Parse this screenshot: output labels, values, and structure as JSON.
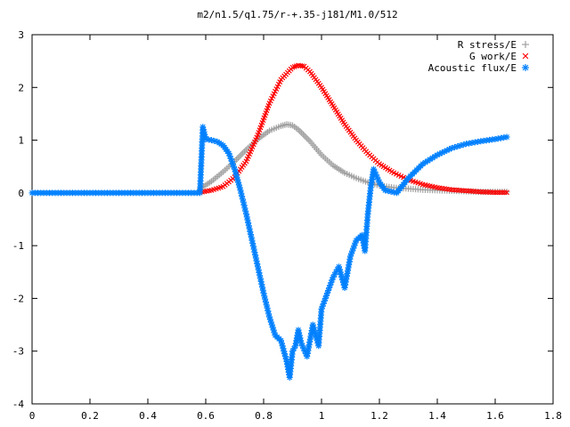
{
  "chart_data": {
    "type": "scatter",
    "title": "m2/n1.5/q1.75/r-+.35-j181/M1.0/512",
    "xlabel": "",
    "ylabel": "",
    "xlim": [
      0,
      1.8
    ],
    "ylim": [
      -4,
      3
    ],
    "x_ticks": [
      "0",
      "0.2",
      "0.4",
      "0.6",
      "0.8",
      "1",
      "1.2",
      "1.4",
      "1.6",
      "1.8"
    ],
    "y_ticks": [
      "3",
      "2",
      "1",
      "0",
      "-1",
      "-2",
      "-3",
      "-4"
    ],
    "grid": false,
    "legend_position": "top-right",
    "series": [
      {
        "name": "R stress/E",
        "marker": "plus",
        "color": "#a0a0a0",
        "x": [
          0.58,
          0.62,
          0.66,
          0.7,
          0.74,
          0.78,
          0.82,
          0.86,
          0.88,
          0.9,
          0.92,
          0.96,
          1.0,
          1.04,
          1.08,
          1.12,
          1.16,
          1.2,
          1.25,
          1.3,
          1.35,
          1.4,
          1.45,
          1.5,
          1.55,
          1.6,
          1.64
        ],
        "y": [
          0.08,
          0.22,
          0.4,
          0.6,
          0.82,
          1.02,
          1.18,
          1.27,
          1.3,
          1.28,
          1.2,
          0.98,
          0.72,
          0.52,
          0.38,
          0.28,
          0.2,
          0.14,
          0.1,
          0.08,
          0.06,
          0.05,
          0.04,
          0.03,
          0.02,
          0.02,
          0.02
        ]
      },
      {
        "name": "G work/E",
        "marker": "cross",
        "color": "#ff0000",
        "x": [
          0.58,
          0.62,
          0.66,
          0.7,
          0.74,
          0.78,
          0.82,
          0.86,
          0.9,
          0.92,
          0.94,
          0.96,
          1.0,
          1.04,
          1.08,
          1.12,
          1.16,
          1.2,
          1.25,
          1.3,
          1.35,
          1.4,
          1.45,
          1.5,
          1.55,
          1.6,
          1.64
        ],
        "y": [
          0.01,
          0.05,
          0.12,
          0.3,
          0.6,
          1.1,
          1.7,
          2.15,
          2.38,
          2.42,
          2.4,
          2.3,
          2.0,
          1.65,
          1.3,
          1.0,
          0.75,
          0.55,
          0.38,
          0.25,
          0.16,
          0.1,
          0.06,
          0.04,
          0.02,
          0.01,
          0.01
        ]
      },
      {
        "name": "Acoustic flux/E",
        "marker": "star",
        "color": "#0080ff",
        "x": [
          0.0,
          0.1,
          0.2,
          0.3,
          0.4,
          0.5,
          0.58,
          0.59,
          0.6,
          0.62,
          0.64,
          0.66,
          0.68,
          0.7,
          0.72,
          0.74,
          0.76,
          0.78,
          0.8,
          0.82,
          0.84,
          0.86,
          0.88,
          0.89,
          0.9,
          0.91,
          0.92,
          0.93,
          0.95,
          0.97,
          0.99,
          1.0,
          1.02,
          1.04,
          1.06,
          1.08,
          1.1,
          1.12,
          1.14,
          1.15,
          1.16,
          1.17,
          1.18,
          1.2,
          1.22,
          1.26,
          1.3,
          1.35,
          1.4,
          1.45,
          1.5,
          1.55,
          1.6,
          1.64
        ],
        "y": [
          0.0,
          0.0,
          0.0,
          0.0,
          0.0,
          0.0,
          0.0,
          1.25,
          1.02,
          1.0,
          0.97,
          0.9,
          0.75,
          0.45,
          0.05,
          -0.4,
          -0.9,
          -1.4,
          -1.9,
          -2.35,
          -2.7,
          -2.8,
          -3.2,
          -3.5,
          -3.0,
          -2.9,
          -2.6,
          -2.85,
          -3.1,
          -2.5,
          -2.9,
          -2.2,
          -1.9,
          -1.6,
          -1.4,
          -1.8,
          -1.2,
          -0.9,
          -0.8,
          -1.1,
          -0.4,
          0.1,
          0.45,
          0.2,
          0.05,
          0.0,
          0.28,
          0.55,
          0.72,
          0.85,
          0.93,
          0.98,
          1.02,
          1.06
        ]
      }
    ]
  }
}
